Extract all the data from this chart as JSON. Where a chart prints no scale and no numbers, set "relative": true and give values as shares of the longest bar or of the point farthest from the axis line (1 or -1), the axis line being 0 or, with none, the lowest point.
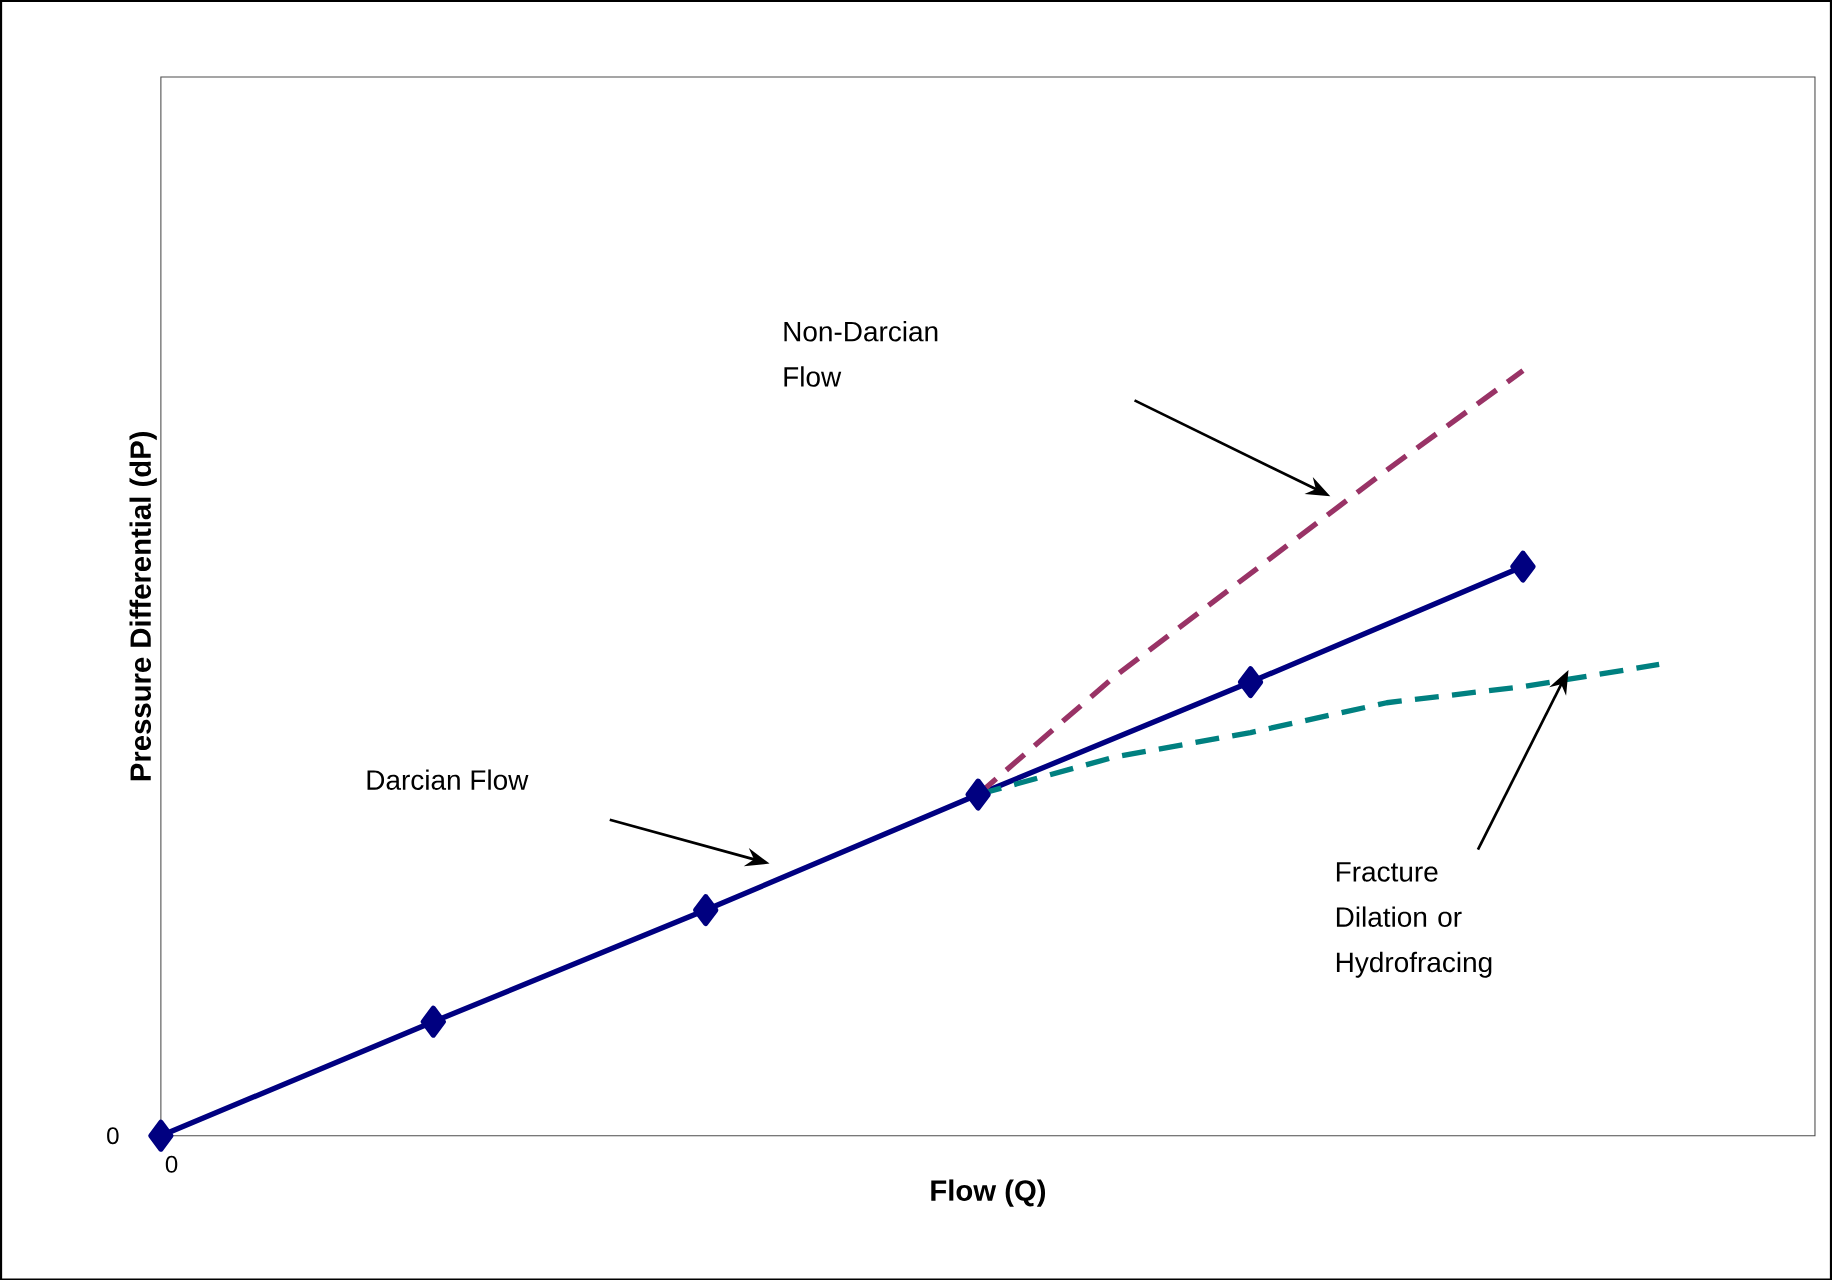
{
  "chart_data": {
    "type": "line",
    "relative": true,
    "xlabel": "Flow (Q)",
    "ylabel": "Pressure Differential (dP)",
    "categories": [
      null,
      null,
      null,
      null,
      null,
      null,
      null,
      null,
      null,
      null,
      null,
      null
    ],
    "grid": false,
    "series": [
      {
        "color": "#000080",
        "marker": "diamond",
        "line_style": "solid",
        "values": [
          0,
          null,
          0.149,
          null,
          0.295,
          null,
          0.446,
          null,
          0.593,
          null,
          0.744,
          null
        ]
      },
      {
        "color": "#993366",
        "marker": "none",
        "line_style": "dashed",
        "values": [
          null,
          null,
          null,
          null,
          null,
          null,
          0.446,
          0.6,
          0.735,
          0.87,
          1.0,
          null
        ]
      },
      {
        "color": "#008080",
        "marker": "none",
        "line_style": "dashed",
        "values": [
          null,
          null,
          null,
          null,
          null,
          null,
          0.446,
          0.495,
          0.527,
          0.566,
          0.587,
          0.616
        ]
      }
    ],
    "annotations": [
      "Darcian Flow",
      "Non-Darcian Flow",
      "Fracture Dilation or Hydrofracing",
      "0",
      "0"
    ]
  }
}
